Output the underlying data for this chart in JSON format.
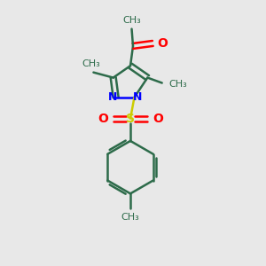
{
  "background_color": "#e8e8e8",
  "bond_color": "#2d6b4a",
  "nitrogen_color": "#0000ff",
  "oxygen_color": "#ff0000",
  "sulfur_color": "#cccc00",
  "line_width": 1.8,
  "figsize": [
    3.0,
    3.0
  ],
  "dpi": 100,
  "xlim": [
    0,
    10
  ],
  "ylim": [
    0,
    10
  ]
}
